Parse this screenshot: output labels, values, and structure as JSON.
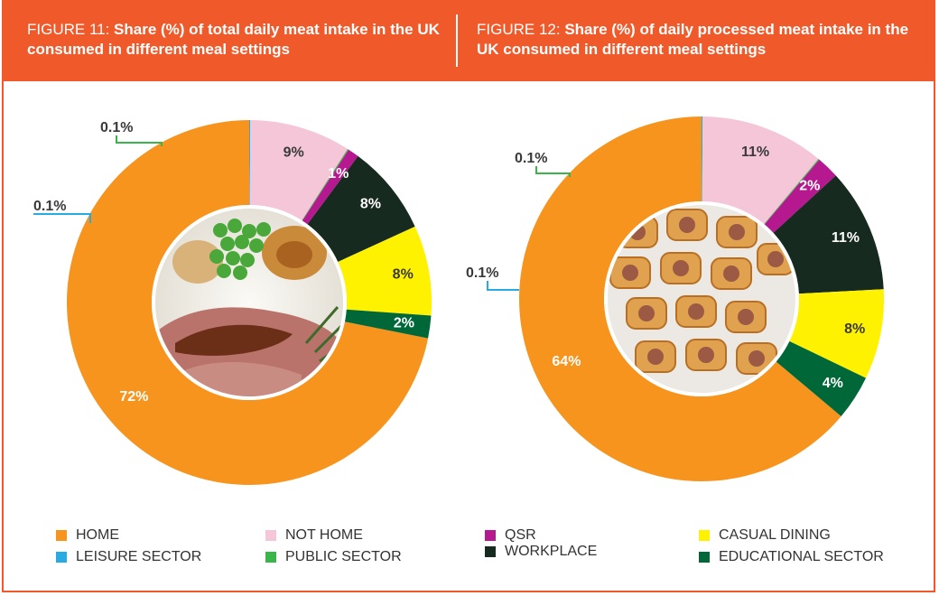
{
  "header": {
    "fig11_prefix": "FIGURE 11: ",
    "fig11_title": "Share (%) of total daily meat intake in the UK consumed in different meal settings",
    "fig12_prefix": "FIGURE 12: ",
    "fig12_title": "Share (%) of daily processed meat intake in the UK consumed in different meal settings"
  },
  "colors": {
    "accent": "#f0592a",
    "HOME": "#f7941d",
    "LEISURE SECTOR": "#29abe2",
    "NOT HOME": "#f4c6d8",
    "PUBLIC SECTOR": "#39b54a",
    "QSR": "#b5188f",
    "WORKPLACE": "#172a1f",
    "CASUAL DINING": "#fff200",
    "EDUCATIONAL SECTOR": "#006838"
  },
  "legend": {
    "items": [
      "HOME",
      "NOT HOME",
      "QSR",
      "CASUAL DINING",
      "LEISURE SECTOR",
      "PUBLIC SECTOR",
      "WORKPLACE",
      "EDUCATIONAL SECTOR"
    ]
  },
  "center_images": {
    "fig11": "roast-beef-dinner-photo",
    "fig12": "sausage-rolls-photo"
  },
  "chart_data": [
    {
      "type": "pie",
      "title": "Share (%) of total daily meat intake in the UK consumed in different meal settings",
      "slices": [
        {
          "category": "HOME",
          "value": 72,
          "label": "72%"
        },
        {
          "category": "LEISURE SECTOR",
          "value": 0.1,
          "label": "0.1%"
        },
        {
          "category": "NOT HOME",
          "value": 9,
          "label": "9%"
        },
        {
          "category": "PUBLIC SECTOR",
          "value": 0.1,
          "label": "0.1%"
        },
        {
          "category": "QSR",
          "value": 1,
          "label": "1%"
        },
        {
          "category": "WORKPLACE",
          "value": 8,
          "label": "8%"
        },
        {
          "category": "CASUAL DINING",
          "value": 8,
          "label": "8%"
        },
        {
          "category": "EDUCATIONAL SECTOR",
          "value": 2,
          "label": "2%"
        }
      ]
    },
    {
      "type": "pie",
      "title": "Share (%) of daily processed meat intake in the UK consumed in different meal settings",
      "slices": [
        {
          "category": "HOME",
          "value": 64,
          "label": "64%"
        },
        {
          "category": "LEISURE SECTOR",
          "value": 0.1,
          "label": "0.1%"
        },
        {
          "category": "NOT HOME",
          "value": 11,
          "label": "11%"
        },
        {
          "category": "PUBLIC SECTOR",
          "value": 0.1,
          "label": "0.1%"
        },
        {
          "category": "QSR",
          "value": 2,
          "label": "2%"
        },
        {
          "category": "WORKPLACE",
          "value": 11,
          "label": "11%"
        },
        {
          "category": "CASUAL DINING",
          "value": 8,
          "label": "8%"
        },
        {
          "category": "EDUCATIONAL SECTOR",
          "value": 4,
          "label": "4%"
        }
      ]
    }
  ]
}
